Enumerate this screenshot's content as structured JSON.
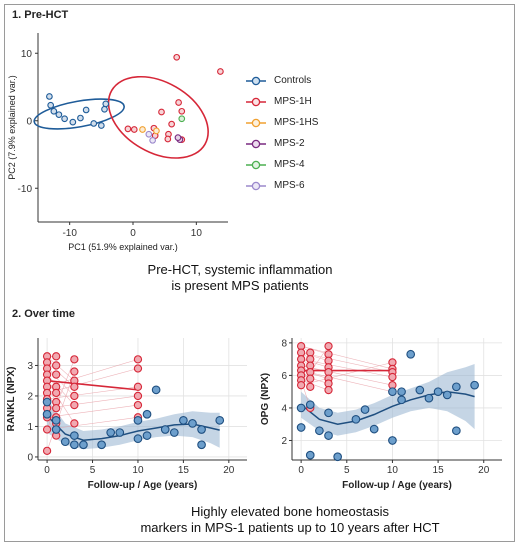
{
  "sections": {
    "pre": {
      "title": "1. Pre-HCT"
    },
    "over": {
      "title": "2. Over time"
    }
  },
  "captions": {
    "pca": "Pre-HCT, systemic inflammation\nis present MPS patients",
    "time": "Highly elevated bone homeostasis\nmarkers in MPS-1 patients up to 10 years after HCT"
  },
  "legend": {
    "items": [
      {
        "label": "Controls",
        "color": "#1f5c99"
      },
      {
        "label": "MPS-1H",
        "color": "#d62738"
      },
      {
        "label": "MPS-1HS",
        "color": "#f0a030"
      },
      {
        "label": "MPS-2",
        "color": "#7a2a80"
      },
      {
        "label": "MPS-4",
        "color": "#4caf50"
      },
      {
        "label": "MPS-6",
        "color": "#9b88cc"
      }
    ]
  },
  "chart_data": [
    {
      "type": "scatter",
      "title": "",
      "xlabel": "PC1 (51.9% explained var.)",
      "ylabel": "PC2 (7.9% explained var.)",
      "xlim": [
        -15,
        15
      ],
      "ylim": [
        -15,
        13
      ],
      "xticks": [
        -10,
        0,
        10
      ],
      "yticks": [
        -10,
        0,
        10
      ],
      "grid": false,
      "legend_position": "right",
      "series": [
        {
          "name": "Controls",
          "color": "#1f5c99",
          "x": [
            -13.2,
            -13.0,
            -12.5,
            -11.7,
            -10.8,
            -9.5,
            -8.3,
            -7.4,
            -6.2,
            -5.0,
            -4.5,
            -4.3
          ],
          "y": [
            3.6,
            2.3,
            1.4,
            0.9,
            0.3,
            -0.2,
            0.4,
            1.6,
            -0.4,
            -0.7,
            1.7,
            2.5
          ]
        },
        {
          "name": "MPS-1H",
          "color": "#d62738",
          "x": [
            -0.8,
            0.2,
            3.3,
            4.5,
            5.6,
            6.1,
            6.9,
            7.2,
            7.7,
            7.7,
            13.8,
            5.5,
            3.5
          ],
          "y": [
            -1.2,
            -1.3,
            -1.1,
            1.3,
            -2.0,
            -0.5,
            9.4,
            2.7,
            1.4,
            -2.8,
            7.3,
            -2.7,
            -2.2
          ]
        },
        {
          "name": "MPS-1HS",
          "color": "#f0a030",
          "x": [
            1.5,
            3.7
          ],
          "y": [
            -1.3,
            -1.5
          ]
        },
        {
          "name": "MPS-2",
          "color": "#7a2a80",
          "x": [
            7.4,
            7.1
          ],
          "y": [
            -2.8,
            -2.5
          ]
        },
        {
          "name": "MPS-4",
          "color": "#4caf50",
          "x": [
            7.7
          ],
          "y": [
            0.3
          ]
        },
        {
          "name": "MPS-6",
          "color": "#9b88cc",
          "x": [
            3.1,
            2.5
          ],
          "y": [
            -2.9,
            -2.0
          ]
        }
      ],
      "ellipses": [
        {
          "group": "Controls",
          "color": "#1f5c99",
          "cx": -8.5,
          "cy": 1.0,
          "rx": 7.2,
          "ry": 1.9,
          "angle": -10
        },
        {
          "group": "MPS-1H",
          "color": "#d62738",
          "cx": 4.0,
          "cy": 0.5,
          "rx": 8.5,
          "ry": 5.2,
          "angle": 30
        }
      ]
    },
    {
      "type": "scatter",
      "title": "",
      "xlabel": "Follow-up / Age (years)",
      "ylabel": "RANKL (NPX)",
      "xlim": [
        -1,
        22
      ],
      "ylim": [
        -0.1,
        3.9
      ],
      "xticks": [
        0,
        5,
        10,
        15,
        20
      ],
      "yticks": [
        0,
        1,
        2,
        3
      ],
      "grid": true,
      "series": [
        {
          "name": "MPS-1",
          "color": "#d62738",
          "x": [
            0,
            0,
            0,
            0,
            0,
            0,
            0,
            0,
            0,
            0,
            0,
            0,
            1,
            1,
            1,
            1,
            1,
            1,
            1,
            1,
            1,
            1,
            3,
            3,
            3,
            3,
            3,
            3,
            3,
            10,
            10,
            10,
            10,
            10,
            10
          ],
          "y": [
            3.3,
            3.1,
            2.9,
            2.7,
            2.5,
            2.3,
            2.1,
            1.9,
            1.6,
            1.3,
            0.9,
            0.2,
            3.3,
            3.0,
            2.7,
            2.3,
            2.1,
            1.8,
            1.6,
            1.3,
            1.1,
            0.7,
            3.2,
            2.8,
            2.5,
            2.3,
            2.0,
            1.7,
            1.1,
            3.2,
            2.9,
            2.3,
            2.0,
            1.7,
            1.3
          ],
          "trend_x": [
            0,
            10
          ],
          "trend_y": [
            2.5,
            2.2
          ]
        },
        {
          "name": "Controls",
          "color": "#1f5c99",
          "x": [
            0,
            0,
            1,
            1,
            2,
            3,
            3,
            4,
            6,
            7,
            8,
            10,
            10,
            11,
            11,
            12,
            13,
            14,
            15,
            16,
            17,
            17,
            19
          ],
          "y": [
            1.4,
            1.8,
            0.9,
            1.2,
            0.5,
            0.7,
            0.4,
            0.4,
            0.4,
            0.8,
            0.8,
            1.2,
            0.6,
            1.4,
            0.7,
            2.2,
            0.9,
            0.8,
            1.2,
            1.1,
            0.9,
            0.4,
            1.2
          ],
          "fit_x": [
            0,
            2,
            4,
            6,
            8,
            10,
            12,
            14,
            16,
            18,
            19
          ],
          "fit_y": [
            1.35,
            0.75,
            0.55,
            0.6,
            0.7,
            0.85,
            0.95,
            1.05,
            1.08,
            0.95,
            0.88
          ],
          "fit_lo": [
            0.8,
            0.4,
            0.25,
            0.3,
            0.4,
            0.55,
            0.65,
            0.7,
            0.65,
            0.45,
            0.3
          ],
          "fit_hi": [
            1.9,
            1.1,
            0.85,
            0.9,
            1.0,
            1.15,
            1.25,
            1.4,
            1.5,
            1.45,
            1.45
          ]
        }
      ]
    },
    {
      "type": "scatter",
      "title": "",
      "xlabel": "Follow-up / Age (years)",
      "ylabel": "OPG (NPX)",
      "xlim": [
        -1,
        22
      ],
      "ylim": [
        0.8,
        8.3
      ],
      "xticks": [
        0,
        5,
        10,
        15,
        20
      ],
      "yticks": [
        2,
        4,
        6,
        8
      ],
      "grid": true,
      "series": [
        {
          "name": "MPS-1",
          "color": "#d62738",
          "x": [
            0,
            0,
            0,
            0,
            0,
            0,
            0,
            0,
            1,
            1,
            1,
            1,
            1,
            1,
            1,
            3,
            3,
            3,
            3,
            3,
            3,
            3,
            3,
            10,
            10,
            10,
            10,
            10,
            10
          ],
          "y": [
            7.8,
            7.4,
            7.0,
            6.6,
            6.3,
            6.0,
            5.7,
            5.4,
            7.4,
            7.0,
            6.6,
            6.2,
            5.8,
            5.3,
            4.0,
            7.8,
            7.3,
            6.9,
            6.5,
            6.2,
            5.8,
            5.5,
            5.1,
            6.8,
            6.4,
            6.2,
            5.9,
            5.4,
            5.0
          ],
          "trend_x": [
            0,
            10
          ],
          "trend_y": [
            6.3,
            6.3
          ]
        },
        {
          "name": "Controls",
          "color": "#1f5c99",
          "x": [
            0,
            0,
            1,
            1,
            2,
            3,
            3,
            4,
            6,
            7,
            8,
            10,
            10,
            11,
            11,
            12,
            13,
            14,
            15,
            16,
            17,
            17,
            19
          ],
          "y": [
            2.8,
            4.0,
            1.1,
            4.2,
            2.6,
            2.3,
            3.7,
            1.0,
            3.3,
            3.9,
            2.7,
            5.0,
            2.0,
            4.5,
            5.0,
            7.3,
            5.1,
            4.6,
            5.0,
            4.8,
            2.6,
            5.3,
            5.4
          ],
          "fit_x": [
            0,
            2,
            4,
            6,
            8,
            10,
            12,
            14,
            16,
            18,
            19
          ],
          "fit_y": [
            4.2,
            3.3,
            3.0,
            3.2,
            3.6,
            4.1,
            4.5,
            4.8,
            5.0,
            4.85,
            4.7
          ],
          "fit_lo": [
            3.4,
            2.6,
            2.3,
            2.5,
            2.9,
            3.4,
            3.8,
            4.0,
            3.8,
            3.2,
            2.7
          ],
          "fit_hi": [
            5.0,
            4.0,
            3.7,
            3.9,
            4.3,
            4.8,
            5.2,
            5.6,
            6.2,
            6.5,
            6.7
          ]
        }
      ]
    }
  ]
}
